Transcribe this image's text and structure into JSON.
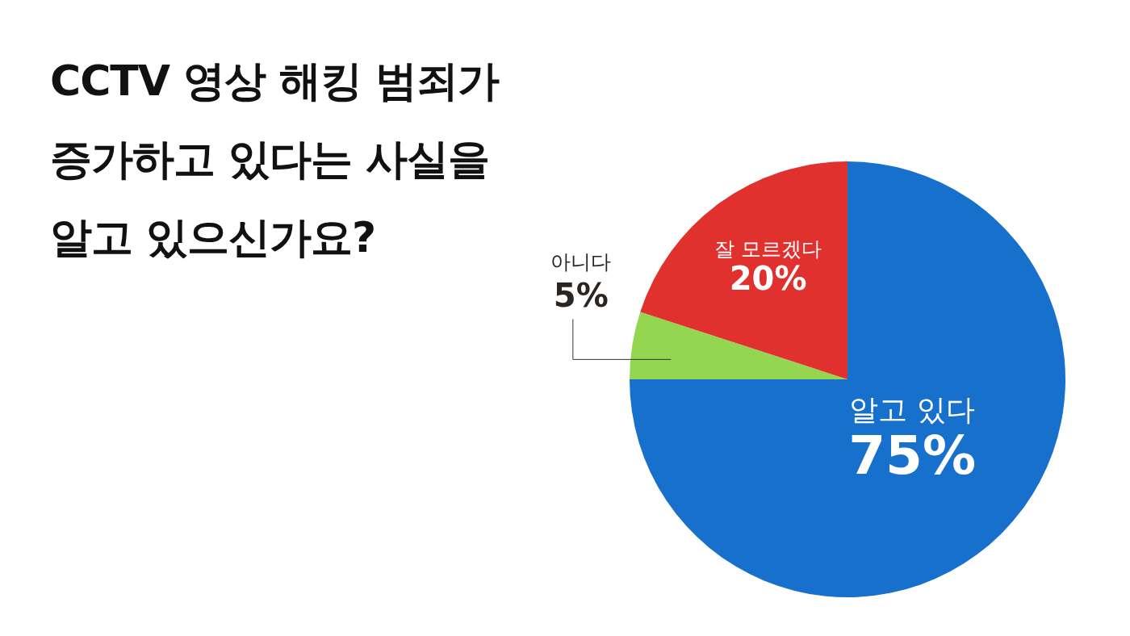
{
  "chart_data": {
    "type": "pie",
    "title": "CCTV 영상 해킹 범죄가 증가하고 있다는 사실을 알고 있으신가요?",
    "categories": [
      "알고 있다",
      "아니다",
      "잘 모르겠다"
    ],
    "values": [
      75,
      5,
      20
    ],
    "colors": [
      "#1670cc",
      "#95d650",
      "#e0312e"
    ],
    "value_labels": [
      "75%",
      "5%",
      "20%"
    ]
  }
}
